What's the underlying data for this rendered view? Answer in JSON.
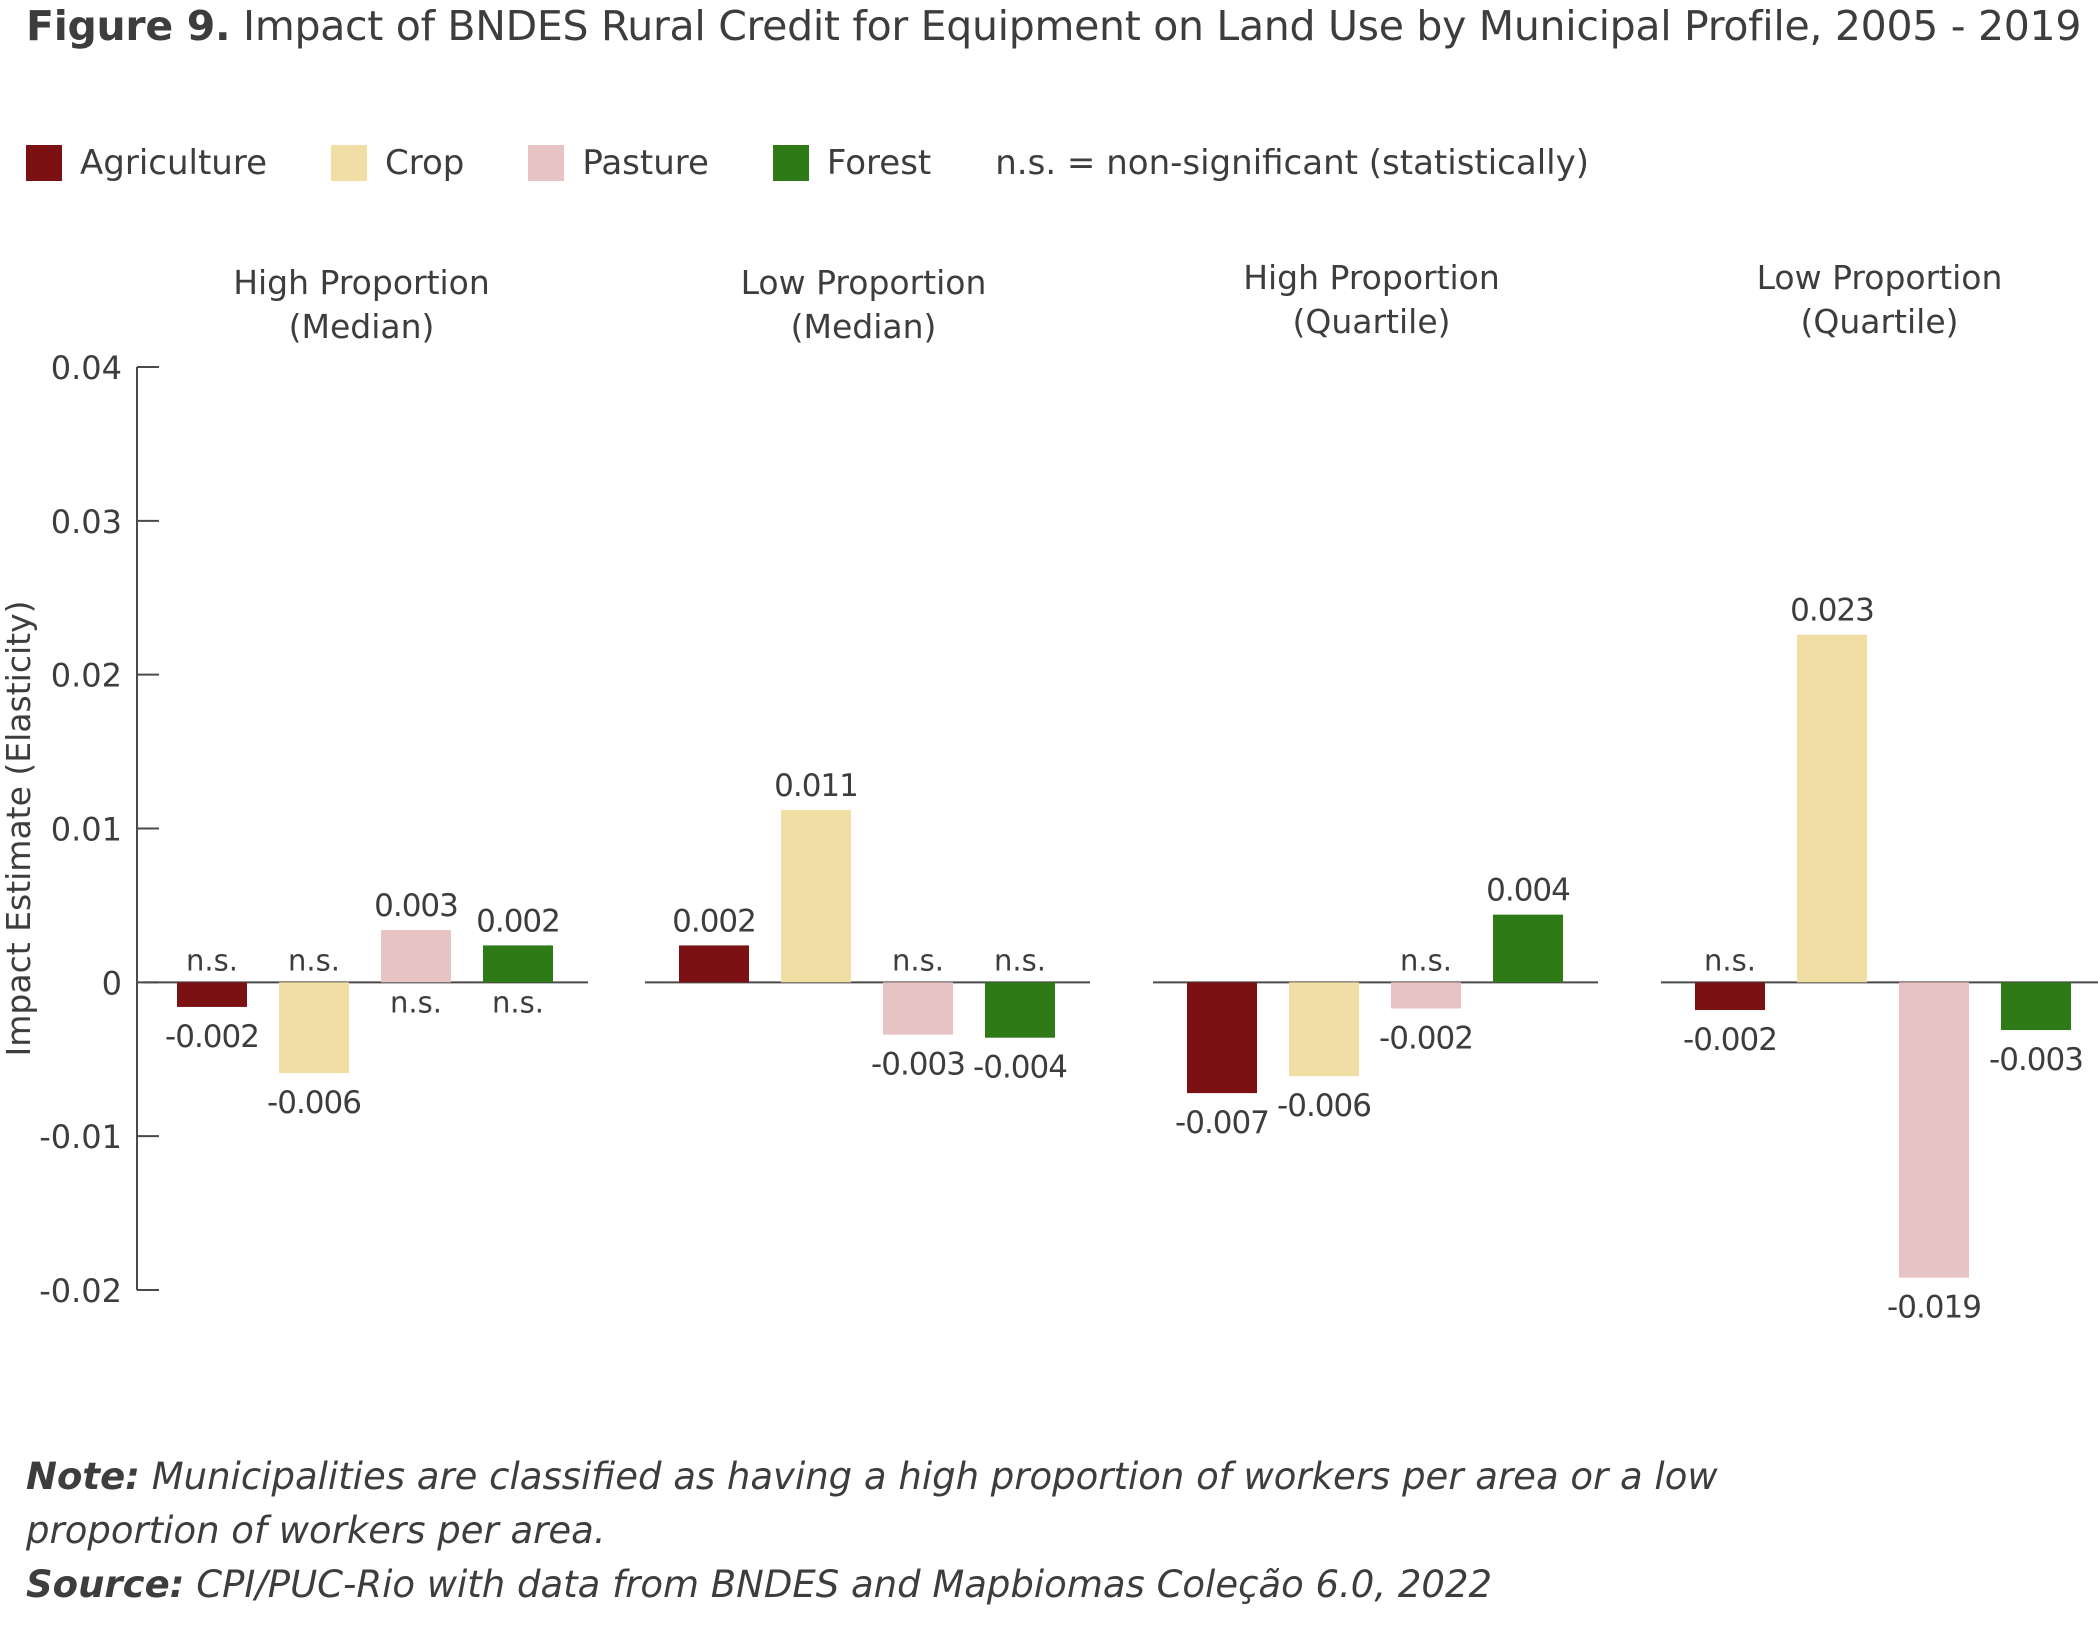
{
  "figure": {
    "label": "Figure 9.",
    "title": "Impact of BNDES Rural Credit for Equipment on Land Use by Municipal Profile, 2005 - 2019"
  },
  "legend": {
    "items": [
      {
        "label": "Agriculture",
        "color": "#7b1113"
      },
      {
        "label": "Crop",
        "color": "#f1dea4"
      },
      {
        "label": "Pasture",
        "color": "#e8c3c4"
      },
      {
        "label": "Forest",
        "color": "#2e7a17"
      }
    ],
    "note": "n.s. = non-significant (statistically)"
  },
  "chart_data": {
    "type": "bar",
    "ylabel": "Impact Estimate (Elasticity)",
    "ylim": [
      -0.02,
      0.04
    ],
    "yticks": [
      "0.04",
      "0.03",
      "0.02",
      "0.01",
      "0",
      "-0.01",
      "-0.02"
    ],
    "ytick_values": [
      0.04,
      0.03,
      0.02,
      0.01,
      0,
      -0.01,
      -0.02
    ],
    "categories": [
      "Agriculture",
      "Crop",
      "Pasture",
      "Forest"
    ],
    "colors": [
      "#7b1113",
      "#f1dea4",
      "#e8c3c4",
      "#2e7a17"
    ],
    "grid": false,
    "panels": [
      {
        "title_line1": "High Proportion",
        "title_line2": "(Median)",
        "bars": [
          {
            "category": "Agriculture",
            "value": -0.0016,
            "label": "-0.002",
            "ns": "n.s."
          },
          {
            "category": "Crop",
            "value": -0.0059,
            "label": "-0.006",
            "ns": "n.s."
          },
          {
            "category": "Pasture",
            "value": 0.0034,
            "label": "0.003",
            "ns": "n.s."
          },
          {
            "category": "Forest",
            "value": 0.0024,
            "label": "0.002",
            "ns": "n.s."
          }
        ]
      },
      {
        "title_line1": "Low Proportion",
        "title_line2": "(Median)",
        "bars": [
          {
            "category": "Agriculture",
            "value": 0.0024,
            "label": "0.002",
            "ns": ""
          },
          {
            "category": "Crop",
            "value": 0.0112,
            "label": "0.011",
            "ns": ""
          },
          {
            "category": "Pasture",
            "value": -0.0034,
            "label": "-0.003",
            "ns": "n.s."
          },
          {
            "category": "Forest",
            "value": -0.0036,
            "label": "-0.004",
            "ns": "n.s."
          }
        ]
      },
      {
        "title_line1": "High Proportion",
        "title_line2": "(Quartile)",
        "bars": [
          {
            "category": "Agriculture",
            "value": -0.0072,
            "label": "-0.007",
            "ns": ""
          },
          {
            "category": "Crop",
            "value": -0.0061,
            "label": "-0.006",
            "ns": ""
          },
          {
            "category": "Pasture",
            "value": -0.0017,
            "label": "-0.002",
            "ns": "n.s."
          },
          {
            "category": "Forest",
            "value": 0.0044,
            "label": "0.004",
            "ns": ""
          }
        ]
      },
      {
        "title_line1": "Low Proportion",
        "title_line2": "(Quartile)",
        "bars": [
          {
            "category": "Agriculture",
            "value": -0.0018,
            "label": "-0.002",
            "ns": "n.s."
          },
          {
            "category": "Crop",
            "value": 0.0226,
            "label": "0.023",
            "ns": ""
          },
          {
            "category": "Pasture",
            "value": -0.0192,
            "label": "-0.019",
            "ns": ""
          },
          {
            "category": "Forest",
            "value": -0.0031,
            "label": "-0.003",
            "ns": ""
          }
        ]
      }
    ]
  },
  "notes": {
    "note_label": "Note:",
    "note_text": "Municipalities are classified as having a high proportion of workers per area or a low proportion of workers per area.",
    "source_label": "Source:",
    "source_text": "CPI/PUC-Rio with data from BNDES and Mapbiomas Coleção 6.0, 2022"
  }
}
